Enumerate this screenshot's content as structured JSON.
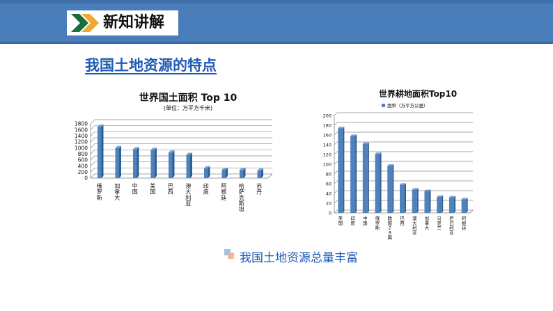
{
  "header": {
    "title": "新知讲解",
    "icon": "double-chevron-icon",
    "bg_color": "#4a7ebb"
  },
  "section_title": "我国土地资源的特点",
  "chart_data": [
    {
      "type": "bar",
      "title": "世界国土面积 Top 10",
      "subtitle": "(单位：万平方千米)",
      "categories": [
        "俄罗斯",
        "加拿大",
        "中国",
        "美国",
        "巴西",
        "澳大利亚",
        "印度",
        "阿根廷",
        "哈萨克斯坦",
        "苏丹"
      ],
      "values": [
        1708,
        998,
        960,
        937,
        851,
        774,
        329,
        278,
        272,
        251
      ],
      "ylim": [
        0,
        1800
      ],
      "yticks": [
        "0",
        "200",
        "400",
        "600",
        "800",
        "1000",
        "1200",
        "1400",
        "1600",
        "1800"
      ],
      "grid": true,
      "color": "#4f81bd"
    },
    {
      "type": "bar",
      "title": "世界耕地面积Top10",
      "legend": "面积（万平方公里）",
      "legend_position": "top",
      "categories": [
        "美国",
        "印度",
        "中国",
        "俄罗斯",
        "欧盟28国",
        "巴西",
        "澳大利亚",
        "加拿大",
        "乌克兰",
        "尼日利亚",
        "阿根廷"
      ],
      "values": [
        174,
        158,
        142,
        121,
        97,
        58,
        48,
        45,
        33,
        32,
        28
      ],
      "ylim": [
        0,
        200
      ],
      "yticks": [
        "0",
        "20",
        "40",
        "60",
        "80",
        "100",
        "120",
        "140",
        "160",
        "180",
        "200"
      ],
      "grid": true,
      "color": "#4f81bd"
    }
  ],
  "summary": "我国土地资源总量丰富"
}
